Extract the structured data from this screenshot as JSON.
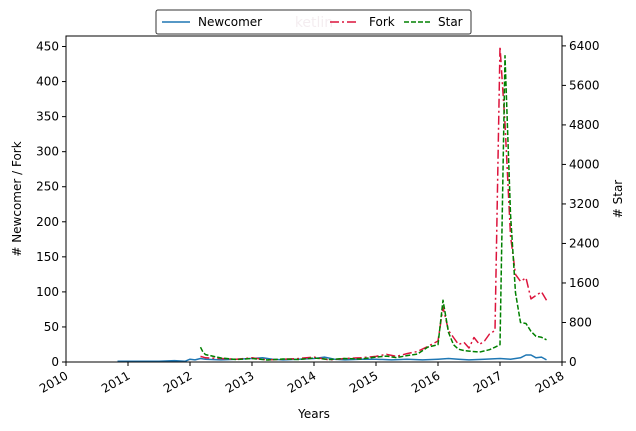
{
  "chart_data": {
    "type": "line",
    "title": "ketlin",
    "xlabel": "Years",
    "ylabel_left": "# Newcomer / Fork",
    "ylabel_right": "# Star",
    "xlim": [
      2010,
      2018
    ],
    "ylim_left": [
      0,
      465
    ],
    "ylim_right": [
      0,
      6600
    ],
    "x_ticks": [
      "2010",
      "2011",
      "2012",
      "2013",
      "2014",
      "2015",
      "2016",
      "2017",
      "2018"
    ],
    "y_ticks_left": [
      "0",
      "50",
      "100",
      "150",
      "200",
      "250",
      "300",
      "350",
      "400",
      "450"
    ],
    "y_ticks_right": [
      "0",
      "800",
      "1600",
      "2400",
      "3200",
      "4000",
      "4800",
      "5600",
      "6400"
    ],
    "legend_position": "top-center",
    "grid": false,
    "series": [
      {
        "name": "Newcomer",
        "axis": "left",
        "color": "#1f77b4",
        "dash": "solid",
        "x": [
          2010.83,
          2011.0,
          2011.25,
          2011.5,
          2011.75,
          2011.92,
          2012.0,
          2012.08,
          2012.17,
          2012.25,
          2012.5,
          2012.75,
          2013.0,
          2013.17,
          2013.33,
          2013.5,
          2013.75,
          2014.0,
          2014.17,
          2014.33,
          2014.5,
          2014.75,
          2015.0,
          2015.25,
          2015.5,
          2015.75,
          2016.0,
          2016.17,
          2016.33,
          2016.5,
          2016.75,
          2017.0,
          2017.17,
          2017.33,
          2017.42,
          2017.5,
          2017.58,
          2017.67,
          2017.75
        ],
        "y": [
          1,
          1,
          1,
          1,
          2,
          1,
          4,
          3,
          5,
          4,
          3,
          4,
          5,
          6,
          4,
          3,
          4,
          5,
          7,
          4,
          3,
          4,
          4,
          3,
          4,
          3,
          4,
          5,
          4,
          3,
          4,
          5,
          4,
          6,
          10,
          10,
          6,
          7,
          3
        ]
      },
      {
        "name": "Fork",
        "axis": "left",
        "color": "#dc143c",
        "dash": "dashdot",
        "x": [
          2012.17,
          2012.25,
          2012.5,
          2012.75,
          2013.0,
          2013.25,
          2013.5,
          2013.75,
          2014.0,
          2014.25,
          2014.5,
          2014.75,
          2015.0,
          2015.17,
          2015.33,
          2015.5,
          2015.67,
          2015.83,
          2016.0,
          2016.08,
          2016.17,
          2016.25,
          2016.33,
          2016.42,
          2016.5,
          2016.58,
          2016.67,
          2016.75,
          2016.83,
          2016.92,
          2017.0,
          2017.08,
          2017.17,
          2017.25,
          2017.33,
          2017.42,
          2017.5,
          2017.58,
          2017.67,
          2017.75
        ],
        "y": [
          8,
          6,
          5,
          4,
          6,
          3,
          4,
          5,
          7,
          3,
          5,
          6,
          8,
          11,
          8,
          12,
          15,
          22,
          30,
          78,
          45,
          35,
          25,
          28,
          20,
          35,
          25,
          30,
          40,
          45,
          450,
          340,
          180,
          125,
          115,
          120,
          90,
          95,
          100,
          88
        ]
      },
      {
        "name": "Star",
        "axis": "right",
        "color": "#008000",
        "dash": "dashed",
        "x": [
          2012.17,
          2012.21,
          2012.25,
          2012.5,
          2012.75,
          2013.0,
          2013.25,
          2013.5,
          2013.75,
          2014.0,
          2014.25,
          2014.5,
          2014.75,
          2015.0,
          2015.17,
          2015.33,
          2015.5,
          2015.67,
          2015.83,
          2016.0,
          2016.08,
          2016.17,
          2016.25,
          2016.33,
          2016.42,
          2016.5,
          2016.67,
          2016.83,
          2016.92,
          2017.0,
          2017.08,
          2017.17,
          2017.25,
          2017.33,
          2017.42,
          2017.5,
          2017.58,
          2017.67,
          2017.75
        ],
        "y": [
          300,
          200,
          150,
          80,
          50,
          70,
          40,
          60,
          50,
          80,
          50,
          70,
          60,
          100,
          120,
          90,
          130,
          160,
          300,
          350,
          1250,
          600,
          350,
          260,
          230,
          220,
          200,
          250,
          300,
          350,
          6200,
          3000,
          1400,
          800,
          780,
          620,
          520,
          500,
          450
        ]
      }
    ]
  }
}
